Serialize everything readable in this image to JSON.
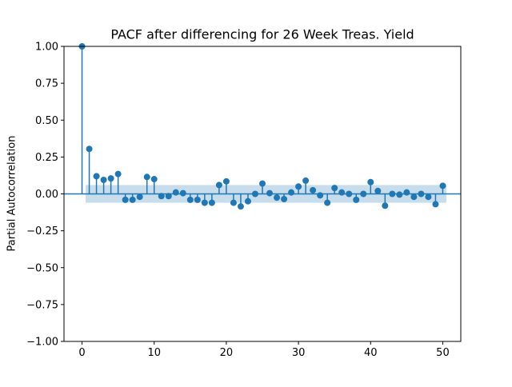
{
  "chart_data": {
    "type": "stem",
    "title": "PACF after differencing for 26 Week Treas. Yield",
    "xlabel": "",
    "ylabel": "Partial Autocorrelation",
    "xlim": [
      -2.5,
      52.5
    ],
    "ylim": [
      -1.0,
      1.0
    ],
    "x_ticks": [
      0,
      10,
      20,
      30,
      40,
      50
    ],
    "x_tick_labels": [
      "0",
      "10",
      "20",
      "30",
      "40",
      "50"
    ],
    "y_ticks": [
      1.0,
      0.75,
      0.5,
      0.25,
      0.0,
      -0.25,
      -0.5,
      -0.75,
      -1.0
    ],
    "y_tick_labels": [
      "1.00",
      "0.75",
      "0.50",
      "0.25",
      "0.00",
      "−0.25",
      "−0.50",
      "−0.75",
      "−1.00"
    ],
    "confidence_band": {
      "x_start": 0.5,
      "x_end": 50.5,
      "lower": -0.06,
      "upper": 0.06
    },
    "lags": [
      0,
      1,
      2,
      3,
      4,
      5,
      6,
      7,
      8,
      9,
      10,
      11,
      12,
      13,
      14,
      15,
      16,
      17,
      18,
      19,
      20,
      21,
      22,
      23,
      24,
      25,
      26,
      27,
      28,
      29,
      30,
      31,
      32,
      33,
      34,
      35,
      36,
      37,
      38,
      39,
      40,
      41,
      42,
      43,
      44,
      45,
      46,
      47,
      48,
      49,
      50
    ],
    "values": [
      1.0,
      0.305,
      0.12,
      0.095,
      0.105,
      0.135,
      -0.04,
      -0.04,
      -0.02,
      0.115,
      0.1,
      -0.015,
      -0.015,
      0.01,
      0.005,
      -0.04,
      -0.04,
      -0.06,
      -0.06,
      0.06,
      0.085,
      -0.06,
      -0.085,
      -0.05,
      0.0,
      0.07,
      0.005,
      -0.025,
      -0.035,
      0.01,
      0.05,
      0.09,
      0.025,
      -0.01,
      -0.06,
      0.04,
      0.01,
      0.0,
      -0.04,
      0.0,
      0.08,
      0.02,
      -0.08,
      0.0,
      -0.005,
      0.01,
      -0.02,
      0.0,
      -0.02,
      -0.07,
      0.055
    ],
    "grid": false,
    "colors": {
      "stem": "#1f77b4",
      "band": "#1f77b4",
      "axes": "#000000"
    }
  }
}
